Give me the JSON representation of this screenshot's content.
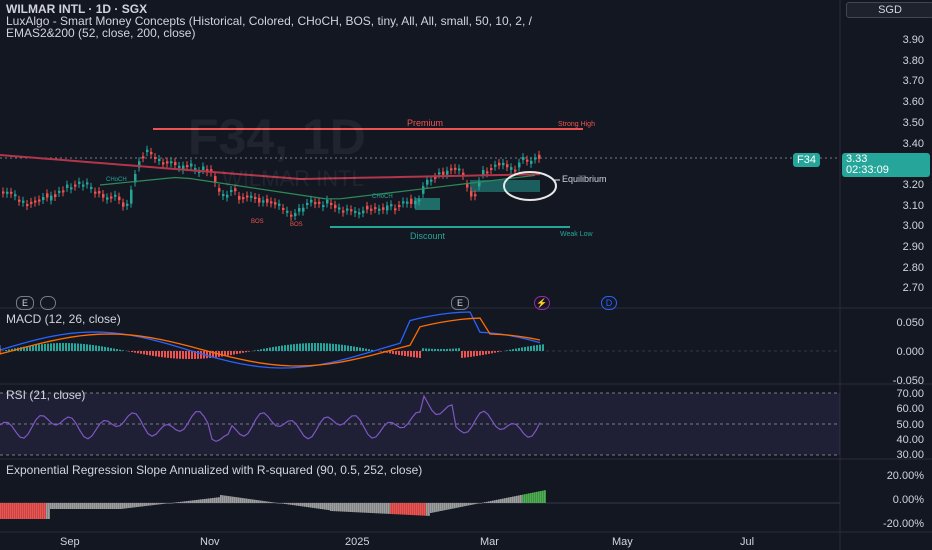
{
  "header": {
    "symbol_line": "WILMAR INTL · 1D · SGX",
    "indicator1": "LuxAlgo - Smart Money Concepts (Historical, Colored, CHoCH, BOS, tiny, All, All, small, 50, 10, 2, /",
    "indicator2": "EMAS2&200 (52, close, 200, close)"
  },
  "watermark": {
    "ticker": "F34, 1D",
    "name": "WILMAR INTL"
  },
  "currency": "SGD",
  "price_axis": [
    "3.90",
    "3.80",
    "3.70",
    "3.60",
    "3.50",
    "3.40",
    "3.30",
    "3.20",
    "3.10",
    "3.00",
    "2.90",
    "2.80",
    "2.70"
  ],
  "last_price": {
    "ticker": "F34",
    "price": "3.33",
    "countdown": "02:33:09"
  },
  "smc_labels": {
    "premium": "Premium",
    "strong_high": "Strong High",
    "equilibrium": "Equilibrium",
    "discount": "Discount",
    "weak_low": "Weak Low",
    "choch1": "CHoCH",
    "choch2": "CHoCH",
    "bos1": "BOS",
    "bos2": "BOS"
  },
  "pane_markers": {
    "e1": "E",
    "e2": "E",
    "lightning": "⚡",
    "d": "D"
  },
  "macd": {
    "title": "MACD (12, 26, close)",
    "axis": [
      "0.050",
      "0.000",
      "-0.050"
    ]
  },
  "rsi": {
    "title": "RSI (21, close)",
    "axis": [
      "70.00",
      "60.00",
      "50.00",
      "40.00",
      "30.00"
    ]
  },
  "regression": {
    "title": "Exponential Regression Slope Annualized with R-squared (90, 0.5, 252, close)",
    "axis": [
      "20.00%",
      "0.00%",
      "-20.00%"
    ]
  },
  "time_axis": [
    "Sep",
    "Nov",
    "2025",
    "Mar",
    "May",
    "Jul"
  ],
  "colors": {
    "up": "#26a69a",
    "down": "#ef5350",
    "ema_red": "#b2364a",
    "ema_green": "#2e8b57",
    "rsi": "#7e57c2",
    "bg": "#131722"
  }
}
